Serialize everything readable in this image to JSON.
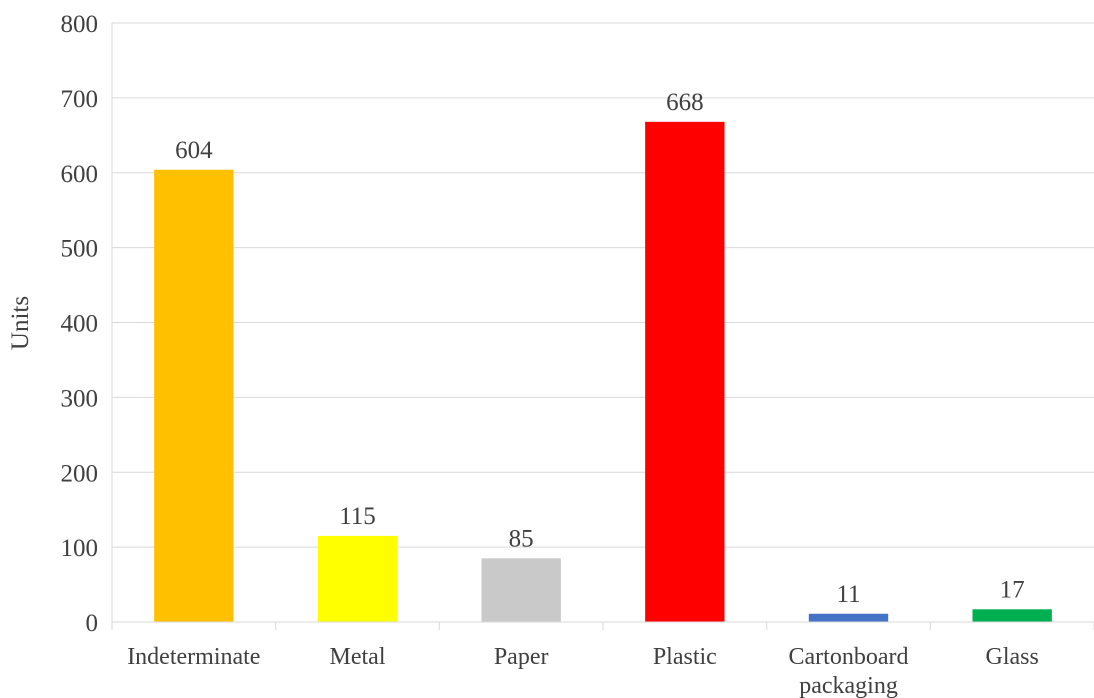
{
  "chart_data": {
    "type": "bar",
    "title": "",
    "xlabel": "",
    "ylabel": "Units",
    "ylim": [
      0,
      800
    ],
    "yticks": [
      0,
      100,
      200,
      300,
      400,
      500,
      600,
      700,
      800
    ],
    "grid": true,
    "legend": "none",
    "categories": [
      [
        "Indeterminate"
      ],
      [
        "Metal"
      ],
      [
        "Paper"
      ],
      [
        "Plastic"
      ],
      [
        "Cartonboard",
        "packaging"
      ],
      [
        "Glass"
      ]
    ],
    "values": [
      604,
      115,
      85,
      668,
      11,
      17
    ],
    "colors": [
      "#FFC000",
      "#FFFF00",
      "#C9C9C9",
      "#FF0000",
      "#4472C4",
      "#00B050"
    ]
  }
}
